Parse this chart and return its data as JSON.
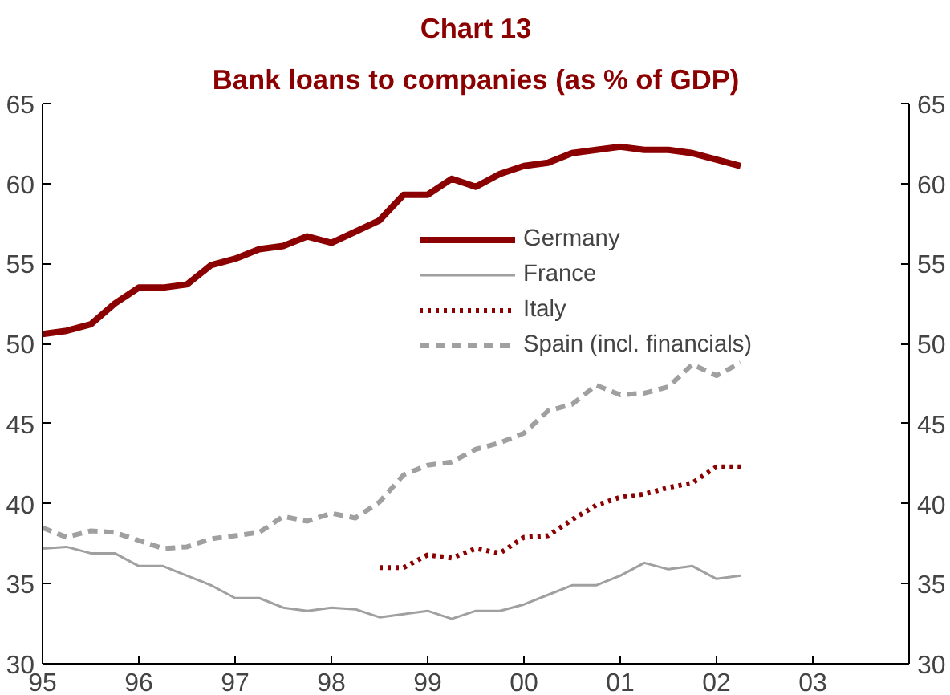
{
  "chart_data": {
    "type": "line",
    "title": "Chart 13",
    "subtitle": "Bank loans to companies (as % of GDP)",
    "xlim": [
      1995,
      2004
    ],
    "xticks": [
      {
        "value": 1995,
        "label": "95"
      },
      {
        "value": 1996,
        "label": "96"
      },
      {
        "value": 1997,
        "label": "97"
      },
      {
        "value": 1998,
        "label": "98"
      },
      {
        "value": 1999,
        "label": "99"
      },
      {
        "value": 2000,
        "label": "00"
      },
      {
        "value": 2001,
        "label": "01"
      },
      {
        "value": 2002,
        "label": "02"
      },
      {
        "value": 2003,
        "label": "03"
      }
    ],
    "ylim": [
      30,
      65
    ],
    "yticks": [
      30,
      35,
      40,
      45,
      50,
      55,
      60,
      65
    ],
    "y2lim": [
      30,
      65
    ],
    "y2ticks": [
      30,
      35,
      40,
      45,
      50,
      55,
      60,
      65
    ],
    "grid": false,
    "legend": "right",
    "marker": "none",
    "series": [
      {
        "name": "Germany",
        "color": "#8b0000",
        "line_style": "solid",
        "x": [
          1995,
          1995.25,
          1995.5,
          1995.75,
          1996,
          1996.25,
          1996.5,
          1996.75,
          1997,
          1997.25,
          1997.5,
          1997.75,
          1998,
          1998.25,
          1998.5,
          1998.75,
          1999,
          1999.25,
          1999.5,
          1999.75,
          2000,
          2000.25,
          2000.5,
          2000.75,
          2001,
          2001.25,
          2001.5,
          2001.75,
          2002,
          2002.25
        ],
        "values": [
          50.6,
          50.8,
          51.2,
          52.5,
          53.5,
          53.5,
          53.7,
          54.9,
          55.3,
          55.9,
          56.1,
          56.7,
          56.3,
          57.0,
          57.7,
          59.3,
          59.3,
          60.3,
          59.8,
          60.6,
          61.1,
          61.3,
          61.9,
          62.1,
          62.3,
          62.1,
          62.1,
          61.9,
          61.5,
          61.1
        ]
      },
      {
        "name": "France",
        "color": "#a0a0a0",
        "line_style": "solid",
        "x": [
          1995,
          1995.25,
          1995.5,
          1995.75,
          1996,
          1996.25,
          1996.5,
          1996.75,
          1997,
          1997.25,
          1997.5,
          1997.75,
          1998,
          1998.25,
          1998.5,
          1998.75,
          1999,
          1999.25,
          1999.5,
          1999.75,
          2000,
          2000.25,
          2000.5,
          2000.75,
          2001,
          2001.25,
          2001.5,
          2001.75,
          2002,
          2002.25
        ],
        "values": [
          37.2,
          37.3,
          36.9,
          36.9,
          36.1,
          36.1,
          35.5,
          34.9,
          34.1,
          34.1,
          33.5,
          33.3,
          33.5,
          33.4,
          32.9,
          33.1,
          33.3,
          32.8,
          33.3,
          33.3,
          33.7,
          34.3,
          34.9,
          34.9,
          35.5,
          36.3,
          35.9,
          36.1,
          35.3,
          35.5
        ]
      },
      {
        "name": "Italy",
        "color": "#8b0000",
        "line_style": "dotted",
        "x": [
          1998.5,
          1998.75,
          1999,
          1999.25,
          1999.5,
          1999.75,
          2000,
          2000.25,
          2000.5,
          2000.75,
          2001,
          2001.25,
          2001.5,
          2001.75,
          2002,
          2002.25
        ],
        "values": [
          36.0,
          36.0,
          36.8,
          36.6,
          37.2,
          36.9,
          37.9,
          38.0,
          39.0,
          39.9,
          40.4,
          40.6,
          41.0,
          41.3,
          42.3,
          42.3
        ]
      },
      {
        "name": "Spain (incl. financials)",
        "color": "#a0a0a0",
        "line_style": "dashed",
        "x": [
          1995,
          1995.25,
          1995.5,
          1995.75,
          1996,
          1996.25,
          1996.5,
          1996.75,
          1997,
          1997.25,
          1997.5,
          1997.75,
          1998,
          1998.25,
          1998.5,
          1998.75,
          1999,
          1999.25,
          1999.5,
          1999.75,
          2000,
          2000.25,
          2000.5,
          2000.75,
          2001,
          2001.25,
          2001.5,
          2001.75,
          2002,
          2002.25
        ],
        "values": [
          38.5,
          37.9,
          38.3,
          38.2,
          37.7,
          37.2,
          37.3,
          37.8,
          38.0,
          38.2,
          39.2,
          38.9,
          39.4,
          39.1,
          40.1,
          41.8,
          42.4,
          42.6,
          43.4,
          43.8,
          44.4,
          45.8,
          46.2,
          47.4,
          46.8,
          46.9,
          47.3,
          48.7,
          48.0,
          48.8
        ]
      }
    ]
  }
}
